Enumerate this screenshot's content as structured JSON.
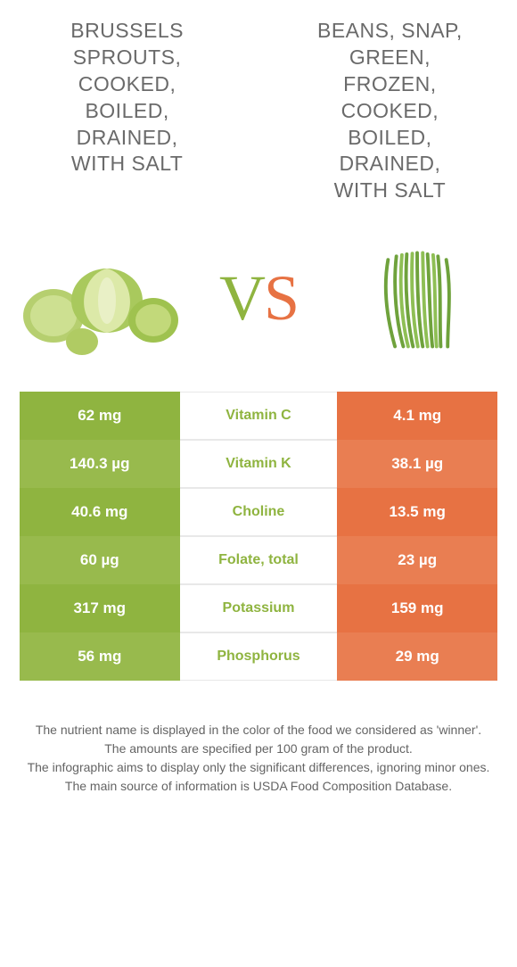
{
  "colors": {
    "left": "#8fb440",
    "right": "#e77243",
    "left_alt": "#98ba4d",
    "right_alt": "#e97e52",
    "mid_border": "#e8e8e8",
    "text": "#5d5d5d"
  },
  "left_food": {
    "title": "BRUSSELS\nSPROUTS,\nCOOKED,\nBOILED,\nDRAINED,\nWITH SALT"
  },
  "right_food": {
    "title": "BEANS, SNAP,\nGREEN,\nFROZEN,\nCOOKED,\nBOILED,\nDRAINED,\nWITH SALT"
  },
  "vs": {
    "v": "V",
    "s": "S"
  },
  "rows": [
    {
      "nutrient": "Vitamin C",
      "left": "62 mg",
      "right": "4.1 mg",
      "winner": "left"
    },
    {
      "nutrient": "Vitamin K",
      "left": "140.3 µg",
      "right": "38.1 µg",
      "winner": "left"
    },
    {
      "nutrient": "Choline",
      "left": "40.6 mg",
      "right": "13.5 mg",
      "winner": "left"
    },
    {
      "nutrient": "Folate, total",
      "left": "60 µg",
      "right": "23 µg",
      "winner": "left"
    },
    {
      "nutrient": "Potassium",
      "left": "317 mg",
      "right": "159 mg",
      "winner": "left"
    },
    {
      "nutrient": "Phosphorus",
      "left": "56 mg",
      "right": "29 mg",
      "winner": "left"
    }
  ],
  "footer": {
    "line1": "The nutrient name is displayed in the color of the food we considered as 'winner'.",
    "line2": "The amounts are specified per 100 gram of the product.",
    "line3": "The infographic aims to display only the significant differences, ignoring minor ones.",
    "line4": "The main source of information is USDA Food Composition Database."
  }
}
